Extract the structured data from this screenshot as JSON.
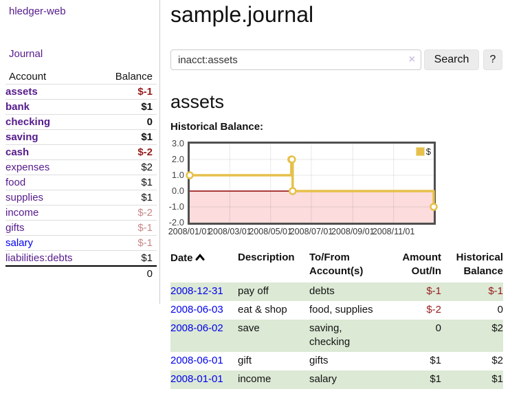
{
  "app": {
    "title": "hledger-web"
  },
  "sidebar": {
    "journal_link": "Journal",
    "table": {
      "account_header": "Account",
      "balance_header": "Balance",
      "accounts": [
        {
          "name": "assets",
          "balance": "$-1"
        },
        {
          "name": "bank",
          "balance": "$1"
        },
        {
          "name": "checking",
          "balance": "0"
        },
        {
          "name": "saving",
          "balance": "$1"
        },
        {
          "name": "cash",
          "balance": "$-2"
        },
        {
          "name": "expenses",
          "balance": "$2"
        },
        {
          "name": "food",
          "balance": "$1"
        },
        {
          "name": "supplies",
          "balance": "$1"
        },
        {
          "name": "income",
          "balance": "$-2"
        },
        {
          "name": "gifts",
          "balance": "$-1"
        },
        {
          "name": "salary",
          "balance": "$-1"
        },
        {
          "name": "liabilities:debts",
          "balance": "$1"
        }
      ],
      "total": "0"
    }
  },
  "header": {
    "title": "sample.journal"
  },
  "search": {
    "value": "inacct:assets",
    "clear_label": "×",
    "button_label": "Search",
    "help_label": "?"
  },
  "account_page": {
    "title": "assets",
    "chart_heading": "Historical Balance:"
  },
  "chart_data": {
    "type": "line",
    "step": true,
    "title": "Historical Balance",
    "x": [
      "2008-01-01",
      "2008-06-01",
      "2008-06-02",
      "2008-06-03",
      "2008-12-31"
    ],
    "series": [
      {
        "name": "$",
        "color": "#e6c04a",
        "values": [
          1,
          2,
          2,
          0,
          -1
        ]
      }
    ],
    "xrange": [
      "2008-01-01",
      "2008-12-31"
    ],
    "ylim": [
      -2,
      3
    ],
    "ytick_labels": [
      "3.0",
      "2.0",
      "1.0",
      "0.0",
      "-1.0",
      "-2.0"
    ],
    "xtick_labels": [
      "2008/01/01",
      "2008/03/01",
      "2008/05/01",
      "2008/07/01",
      "2008/09/01",
      "2008/11/01"
    ],
    "legend": {
      "label": "$",
      "position": "top-right"
    },
    "grid": true,
    "negative_region_color": "#fcdcdc",
    "zero_line_color": "#8b0000"
  },
  "register": {
    "headers": {
      "date": "Date",
      "description": "Description",
      "accounts": "To/From Account(s)",
      "amount": "Amount Out/In",
      "balance": "Historical Balance"
    },
    "rows": [
      {
        "date": "2008-12-31",
        "description": "pay off",
        "accounts": "debts",
        "amount": "$-1",
        "balance": "$-1"
      },
      {
        "date": "2008-06-03",
        "description": "eat & shop",
        "accounts": "food, supplies",
        "amount": "$-2",
        "balance": "0"
      },
      {
        "date": "2008-06-02",
        "description": "save",
        "accounts": "saving, checking",
        "amount": "0",
        "balance": "$2"
      },
      {
        "date": "2008-06-01",
        "description": "gift",
        "accounts": "gifts",
        "amount": "$1",
        "balance": "$2"
      },
      {
        "date": "2008-01-01",
        "description": "income",
        "accounts": "salary",
        "amount": "$1",
        "balance": "$1"
      }
    ]
  },
  "colors": {
    "link_visited": "#551a8b",
    "link": "#0000ee",
    "negative": "#971b1b",
    "negative_muted": "#c98787",
    "row_stripe": "#dce9d5",
    "chart_line": "#e6c04a",
    "chart_negative_fill": "#fcdcdc",
    "chart_zero_line": "#8b0000"
  }
}
